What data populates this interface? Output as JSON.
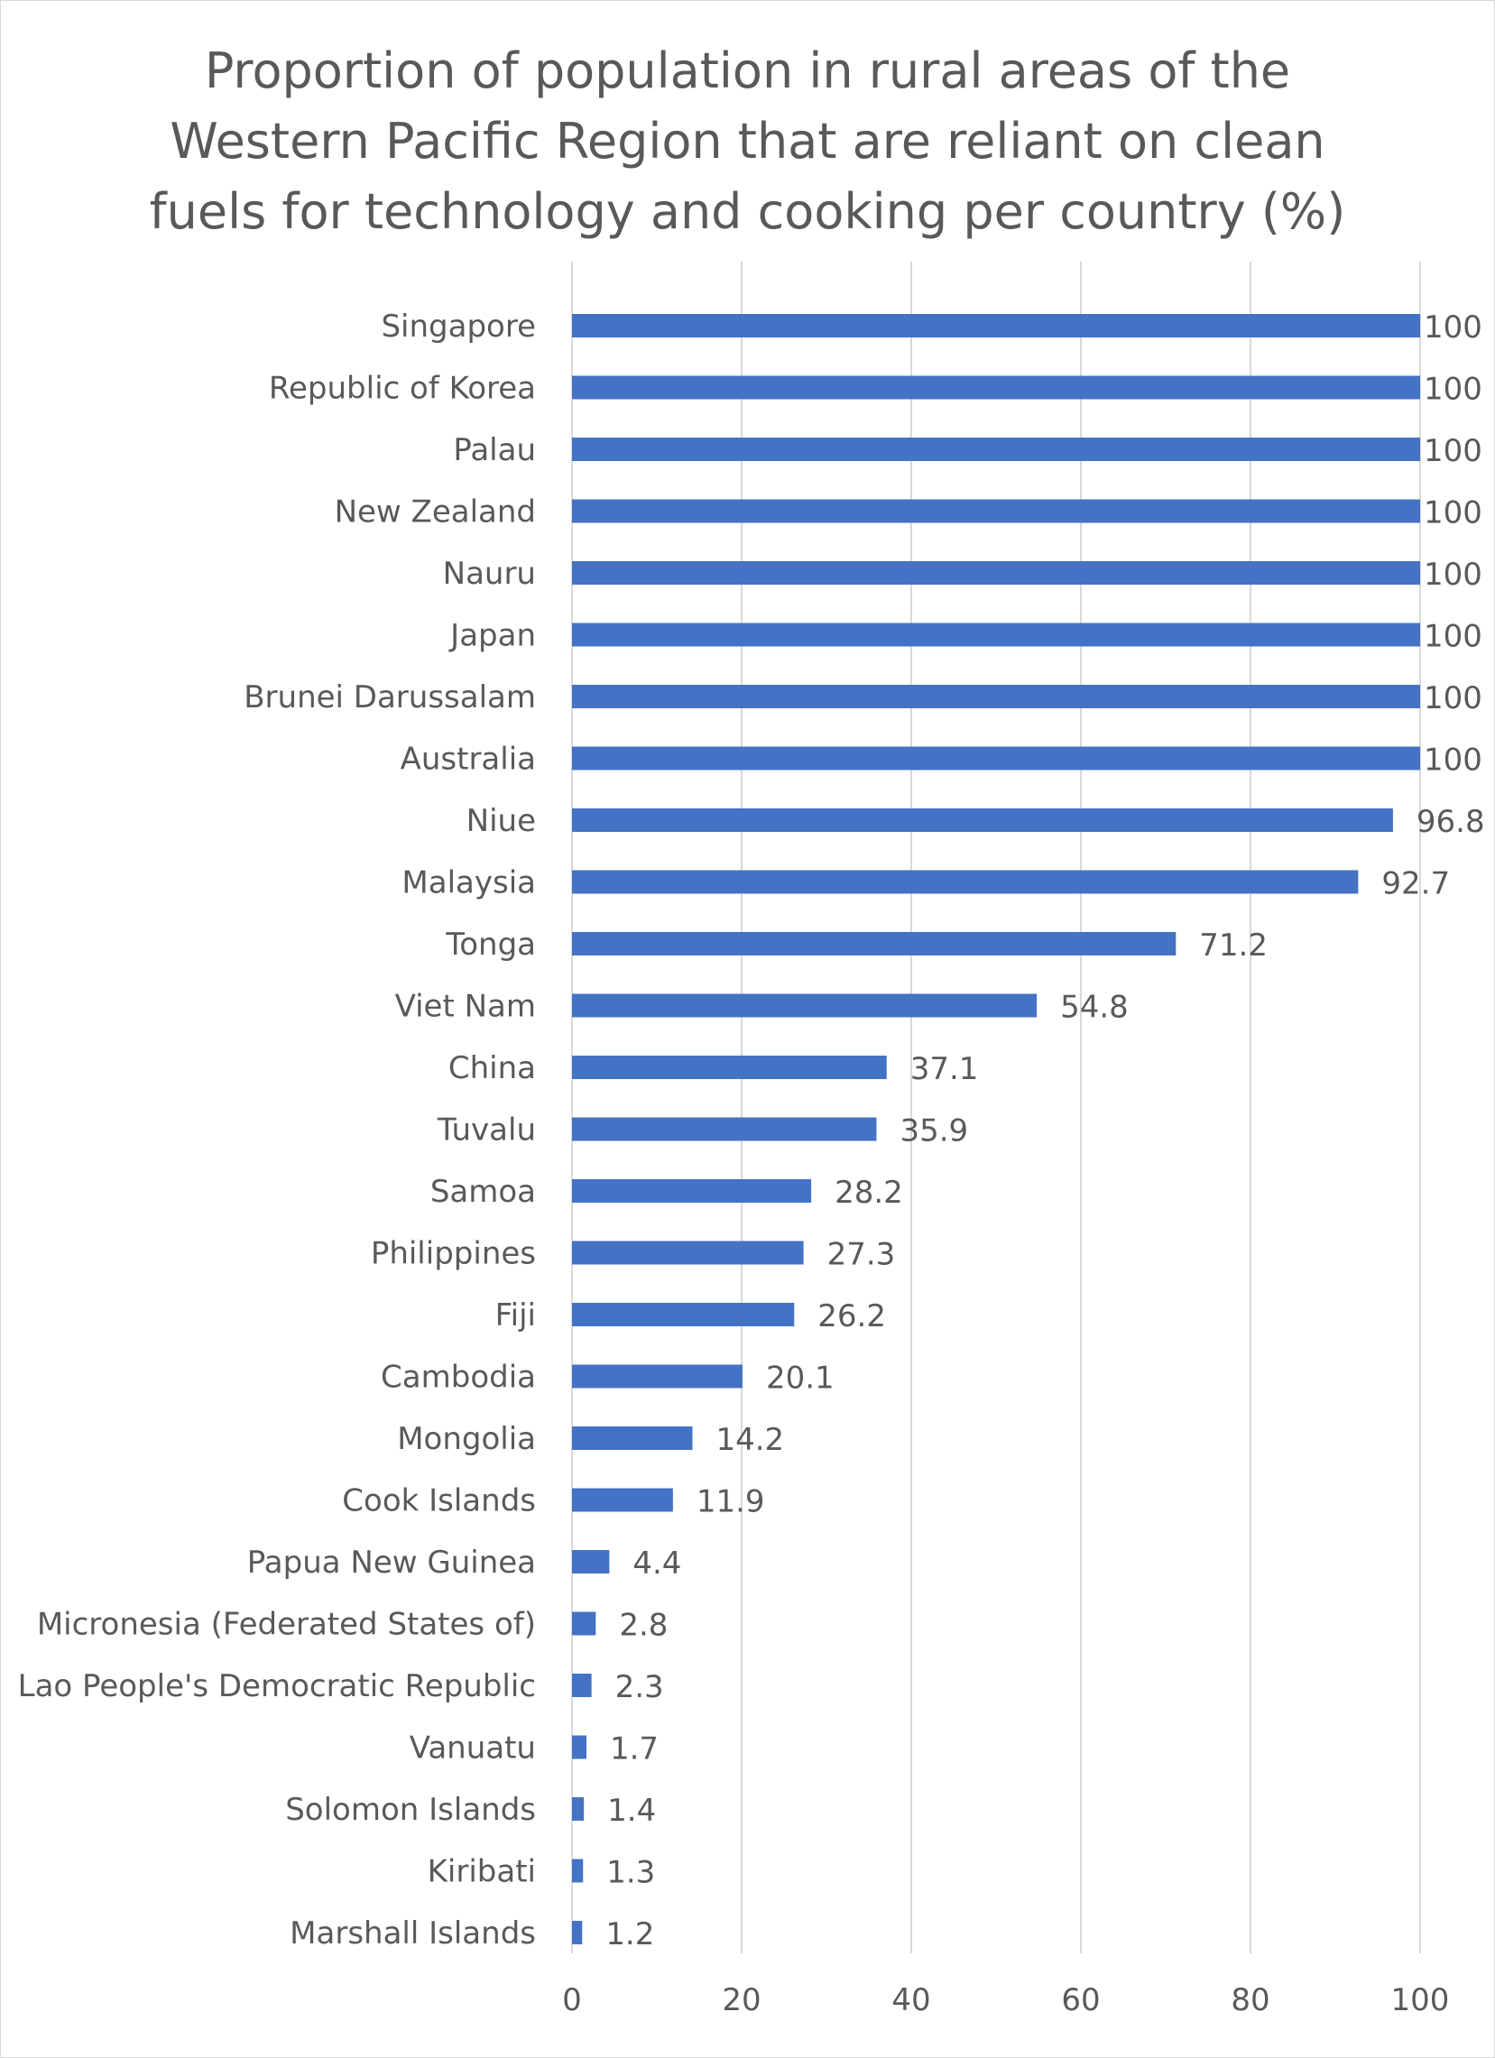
{
  "chart_data": {
    "type": "bar",
    "orientation": "horizontal",
    "title": "Proportion of population in rural areas of the Western Pacific Region that are reliant on clean fuels for technology and cooking per country (%)",
    "categories": [
      "Singapore",
      "Republic of Korea",
      "Palau",
      "New Zealand",
      "Nauru",
      "Japan",
      "Brunei Darussalam",
      "Australia",
      "Niue",
      "Malaysia",
      "Tonga",
      "Viet Nam",
      "China",
      "Tuvalu",
      "Samoa",
      "Philippines",
      "Fiji",
      "Cambodia",
      "Mongolia",
      "Cook Islands",
      "Papua New Guinea",
      "Micronesia (Federated States of)",
      "Lao People's Democratic Republic",
      "Vanuatu",
      "Solomon Islands",
      "Kiribati",
      "Marshall Islands"
    ],
    "values": [
      100,
      100,
      100,
      100,
      100,
      100,
      100,
      100,
      96.8,
      92.7,
      71.2,
      54.8,
      37.1,
      35.9,
      28.2,
      27.3,
      26.2,
      20.1,
      14.2,
      11.9,
      4.4,
      2.8,
      2.3,
      1.7,
      1.4,
      1.3,
      1.2
    ],
    "value_labels": [
      "100",
      "100",
      "100",
      "100",
      "100",
      "100",
      "100",
      "100",
      "96.8",
      "92.7",
      "71.2",
      "54.8",
      "37.1",
      "35.9",
      "28.2",
      "27.3",
      "26.2",
      "20.1",
      "14.2",
      "11.9",
      "4.4",
      "2.8",
      "2.3",
      "1.7",
      "1.4",
      "1.3",
      "1.2"
    ],
    "xlim": [
      0,
      100
    ],
    "xticks": [
      "0",
      "20",
      "40",
      "60",
      "80",
      "100"
    ],
    "xlabel": "",
    "ylabel": "",
    "grid": "vertical",
    "legend": "none",
    "colors": {
      "bar": "#4472C4",
      "grid": "#d9d9d9",
      "text": "#595959"
    }
  }
}
